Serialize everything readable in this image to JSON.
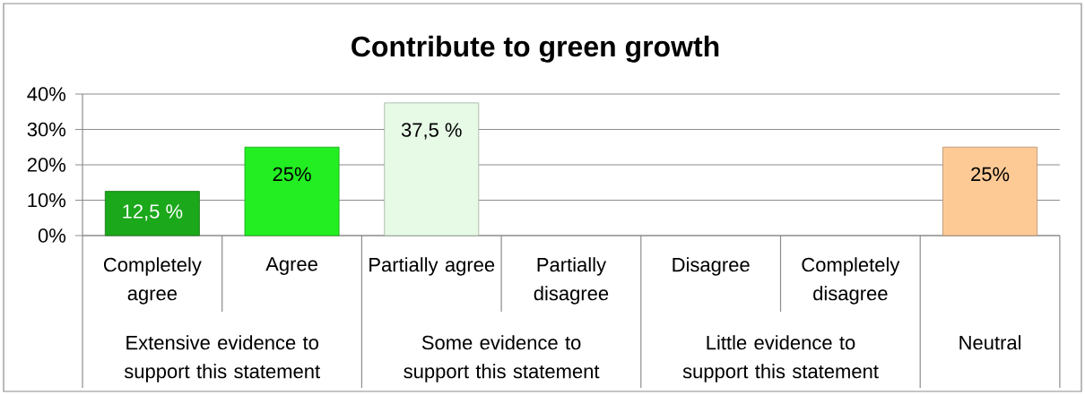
{
  "chart_data": {
    "type": "bar",
    "title": "Contribute to green growth",
    "categories": [
      "Completely agree",
      "Agree",
      "Partially agree",
      "Partially disagree",
      "Disagree",
      "Completely disagree",
      null
    ],
    "values": [
      12.5,
      25,
      37.5,
      null,
      null,
      null,
      25
    ],
    "colors": [
      "#1ba81b",
      "#22ee22",
      "#e6fae6",
      null,
      null,
      null,
      "#fdca96"
    ],
    "value_labels": [
      "12,5 %",
      "25%",
      "37,5 %",
      null,
      null,
      null,
      "25%"
    ],
    "annotations": [
      "Extensive evidence to support this statement",
      "Some evidence to support this statement",
      "Little evidence to support this statement",
      "Neutral"
    ],
    "ylim": [
      0,
      40
    ],
    "yticks": [
      {
        "value": 0,
        "label": "0%"
      },
      {
        "value": 10,
        "label": "10%"
      },
      {
        "value": 20,
        "label": "20%"
      },
      {
        "value": 30,
        "label": "30%"
      },
      {
        "value": 40,
        "label": "40%"
      }
    ],
    "grid": "y"
  }
}
